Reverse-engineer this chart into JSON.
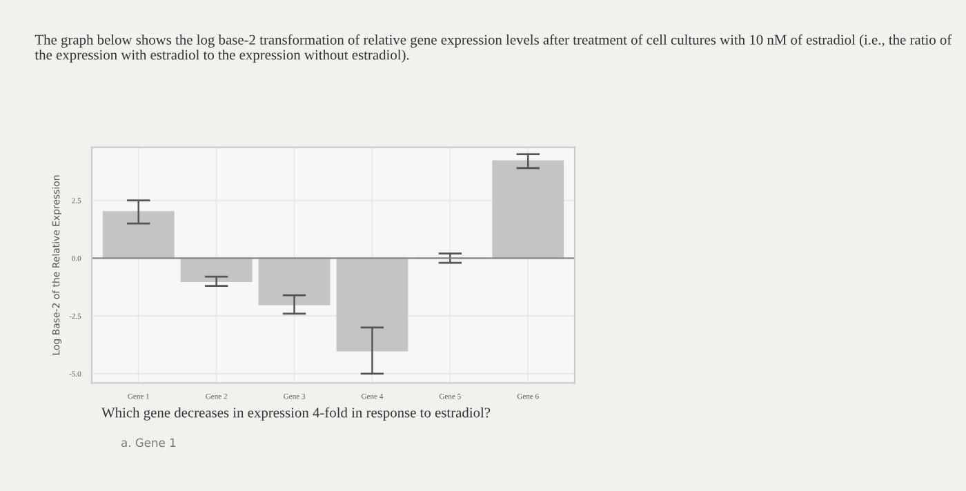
{
  "chart_data": {
    "type": "bar",
    "title": "The graph below shows the log base-2 transformation of relative gene expression levels after treatment of cell cultures with 10 nM of estradiol (i.e., the ratio of the expression with estradiol to the expression without estradiol).",
    "ylabel": "Log Base-2 of the Relative Expression",
    "categories": [
      "Gene 1",
      "Gene 2",
      "Gene 3",
      "Gene 4",
      "Gene 5",
      "Gene 6"
    ],
    "values": [
      2.0,
      -1.0,
      -2.0,
      -4.0,
      0.0,
      4.2
    ],
    "errors": [
      0.5,
      0.2,
      0.4,
      1.0,
      0.2,
      0.3
    ],
    "color": "#c4c4c4",
    "ylim": [
      -5.4,
      4.8
    ],
    "yticks": [
      {
        "value": -5.0,
        "label": "-5.0"
      },
      {
        "value": -2.5,
        "label": "-2.5"
      },
      {
        "value": 0.0,
        "label": "0.0"
      },
      {
        "value": 2.5,
        "label": "2.5"
      }
    ],
    "grid": true,
    "annotations": [
      "Which gene decreases in expression 4-fold in response to estradiol?",
      "a. Gene 1"
    ]
  }
}
